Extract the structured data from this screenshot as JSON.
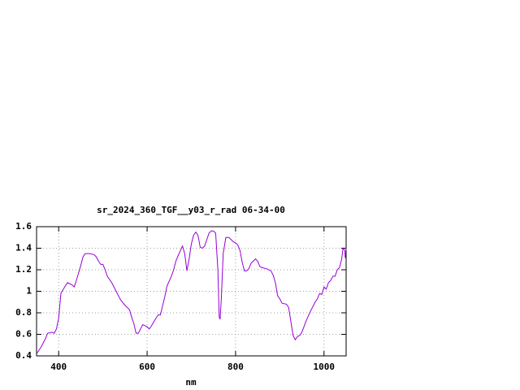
{
  "chart_data": {
    "type": "line",
    "title": "sr_2024_360_TGF__y03_r_rad 06-34-00",
    "xlabel": "nm",
    "x": [
      350,
      360,
      370,
      375,
      385,
      390,
      395,
      400,
      405,
      415,
      420,
      430,
      435,
      440,
      450,
      455,
      460,
      470,
      480,
      485,
      490,
      495,
      500,
      505,
      510,
      520,
      530,
      540,
      550,
      560,
      565,
      570,
      575,
      580,
      585,
      590,
      600,
      605,
      610,
      620,
      625,
      630,
      640,
      645,
      655,
      660,
      665,
      670,
      680,
      685,
      690,
      695,
      700,
      705,
      710,
      715,
      720,
      725,
      730,
      740,
      745,
      750,
      755,
      760,
      763,
      765,
      768,
      772,
      778,
      785,
      795,
      800,
      805,
      810,
      815,
      820,
      825,
      830,
      835,
      845,
      850,
      855,
      860,
      870,
      880,
      885,
      890,
      895,
      900,
      905,
      915,
      920,
      925,
      930,
      935,
      940,
      945,
      950,
      960,
      970,
      980,
      985,
      990,
      995,
      1000,
      1005,
      1010,
      1015,
      1020,
      1025,
      1030,
      1035,
      1040,
      1043,
      1047,
      1048,
      1050
    ],
    "series": [
      {
        "color": "#9400d3",
        "values": [
          0.42,
          0.48,
          0.56,
          0.61,
          0.62,
          0.61,
          0.65,
          0.75,
          0.98,
          1.05,
          1.08,
          1.06,
          1.04,
          1.1,
          1.24,
          1.32,
          1.35,
          1.35,
          1.34,
          1.32,
          1.28,
          1.25,
          1.25,
          1.2,
          1.14,
          1.08,
          1.0,
          0.92,
          0.87,
          0.83,
          0.76,
          0.7,
          0.61,
          0.61,
          0.65,
          0.69,
          0.67,
          0.65,
          0.68,
          0.75,
          0.78,
          0.78,
          0.95,
          1.05,
          1.14,
          1.2,
          1.28,
          1.33,
          1.42,
          1.35,
          1.19,
          1.3,
          1.44,
          1.52,
          1.55,
          1.52,
          1.41,
          1.4,
          1.42,
          1.54,
          1.56,
          1.56,
          1.54,
          1.2,
          0.76,
          0.74,
          0.95,
          1.35,
          1.5,
          1.5,
          1.46,
          1.45,
          1.43,
          1.38,
          1.27,
          1.19,
          1.19,
          1.21,
          1.26,
          1.3,
          1.28,
          1.23,
          1.22,
          1.21,
          1.19,
          1.15,
          1.08,
          0.96,
          0.93,
          0.89,
          0.88,
          0.85,
          0.72,
          0.59,
          0.55,
          0.58,
          0.59,
          0.62,
          0.73,
          0.82,
          0.9,
          0.93,
          0.98,
          0.97,
          1.04,
          1.02,
          1.08,
          1.1,
          1.14,
          1.14,
          1.2,
          1.22,
          1.3,
          1.4,
          1.38,
          1.31,
          1.4
        ]
      }
    ],
    "xlim": [
      350,
      1050
    ],
    "xticks": [
      400,
      600,
      800,
      1000
    ],
    "ylim": [
      0.4,
      1.6
    ],
    "yticks": [
      0.4,
      0.6,
      0.8,
      1,
      1.2,
      1.4,
      1.6
    ],
    "grid": true
  }
}
